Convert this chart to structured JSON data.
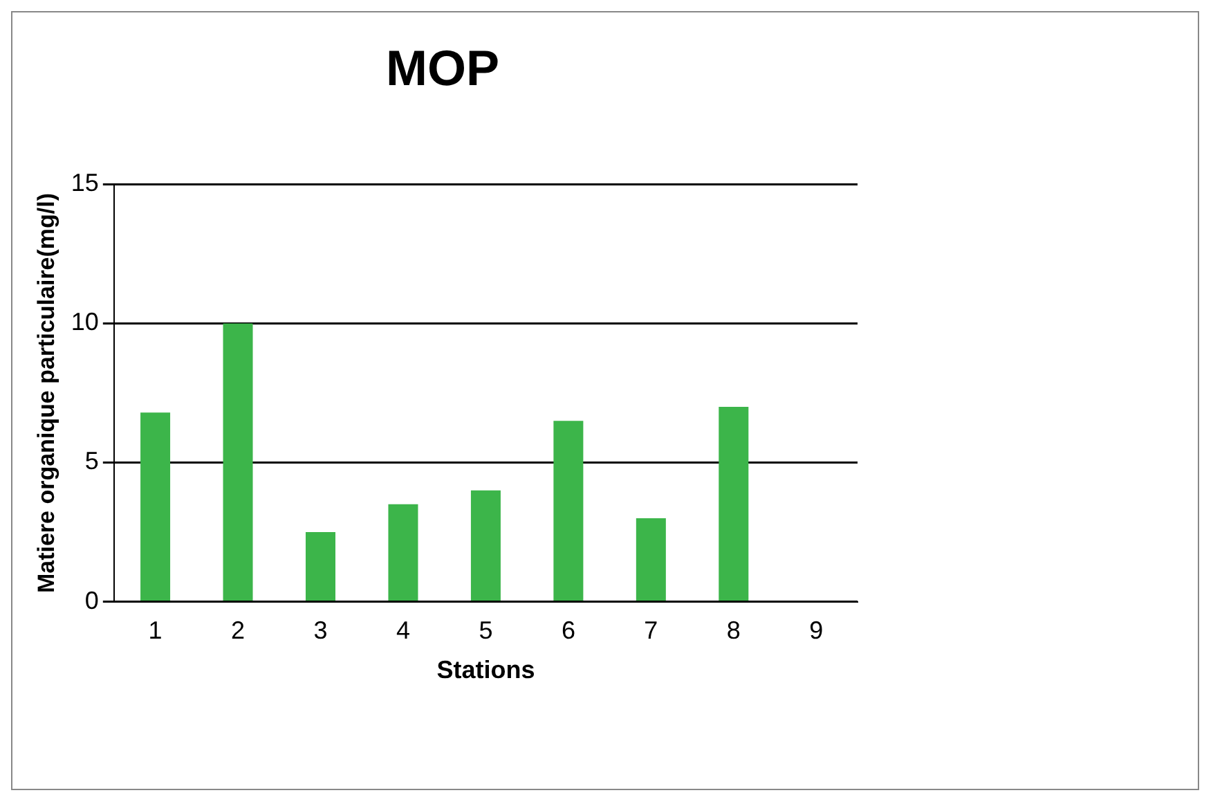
{
  "chart_data": {
    "type": "bar",
    "title": "MOP",
    "xlabel": "Stations",
    "ylabel": "Matiere organique particulaire(mg/l)",
    "categories": [
      "1",
      "2",
      "3",
      "4",
      "5",
      "6",
      "7",
      "8",
      "9"
    ],
    "values": [
      6.8,
      10,
      2.5,
      3.5,
      4,
      6.5,
      3,
      7,
      null
    ],
    "color": "#3cb54a",
    "ylim": [
      0,
      15
    ],
    "yticks": [
      0,
      5,
      10,
      15
    ],
    "grid": "y"
  }
}
